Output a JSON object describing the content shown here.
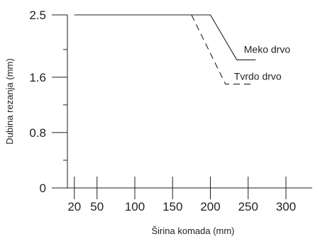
{
  "chart_data": {
    "type": "line",
    "title": "",
    "xlabel": "Širina komada (mm)",
    "ylabel": "Dubina rezanja (mm)",
    "xlim": [
      0,
      320
    ],
    "ylim": [
      0,
      2.5
    ],
    "x_ticks": [
      20,
      50,
      100,
      150,
      200,
      250,
      300
    ],
    "y_ticks": [
      0,
      0.8,
      1.6,
      2.5
    ],
    "y_tick_labels": [
      "0",
      "0.8",
      "1.6",
      "2.5"
    ],
    "y_minor_ticks": [
      0.4,
      1.2,
      2.0
    ],
    "grid": false,
    "legend": "inline-labels",
    "series": [
      {
        "name": "Meko drvo",
        "style": "solid",
        "points": [
          [
            20,
            2.5
          ],
          [
            200,
            2.5
          ],
          [
            235,
            1.85
          ],
          [
            260,
            1.85
          ]
        ]
      },
      {
        "name": "Tvrdo drvo",
        "style": "dashed",
        "points": [
          [
            20,
            2.5
          ],
          [
            175,
            2.5
          ],
          [
            220,
            1.5
          ],
          [
            255,
            1.5
          ]
        ]
      }
    ]
  }
}
